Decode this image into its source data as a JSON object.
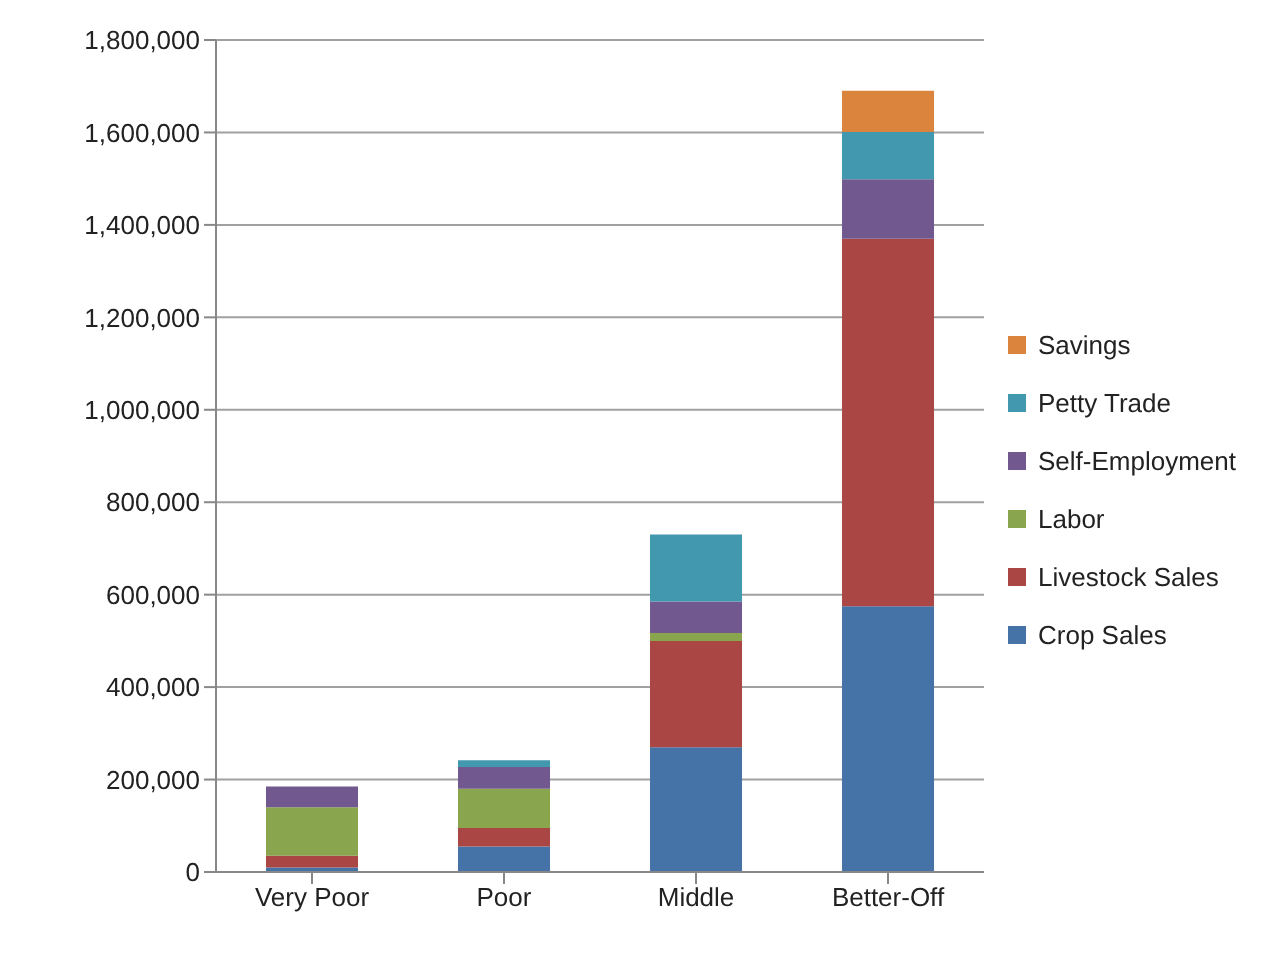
{
  "chart_data": {
    "type": "bar",
    "stacked": true,
    "categories": [
      "Very Poor",
      "Poor",
      "Middle",
      "Better-Off"
    ],
    "series": [
      {
        "name": "Crop Sales",
        "color": "#4572a7",
        "values": [
          10000,
          55000,
          270000,
          575000
        ]
      },
      {
        "name": "Livestock Sales",
        "color": "#aa4643",
        "values": [
          25000,
          40000,
          230000,
          795000
        ]
      },
      {
        "name": "Labor",
        "color": "#89a54e",
        "values": [
          105000,
          85000,
          17000,
          null
        ]
      },
      {
        "name": "Self-Employment",
        "color": "#71588f",
        "values": [
          45000,
          47000,
          68000,
          129000
        ]
      },
      {
        "name": "Petty Trade",
        "color": "#4198af",
        "values": [
          null,
          15000,
          145000,
          102000
        ]
      },
      {
        "name": "Savings",
        "color": "#db843d",
        "values": [
          null,
          null,
          null,
          89000
        ]
      }
    ],
    "ylim": [
      0,
      1800000
    ],
    "yticks": [
      {
        "value": 0,
        "label": "0"
      },
      {
        "value": 200000,
        "label": "200,000"
      },
      {
        "value": 400000,
        "label": "400,000"
      },
      {
        "value": 600000,
        "label": "600,000"
      },
      {
        "value": 800000,
        "label": "800,000"
      },
      {
        "value": 1000000,
        "label": "1,000,000"
      },
      {
        "value": 1200000,
        "label": "1,200,000"
      },
      {
        "value": 1400000,
        "label": "1,400,000"
      },
      {
        "value": 1600000,
        "label": "1,600,000"
      },
      {
        "value": 1800000,
        "label": "1,800,000"
      }
    ],
    "grid": "y",
    "legend": "right"
  }
}
